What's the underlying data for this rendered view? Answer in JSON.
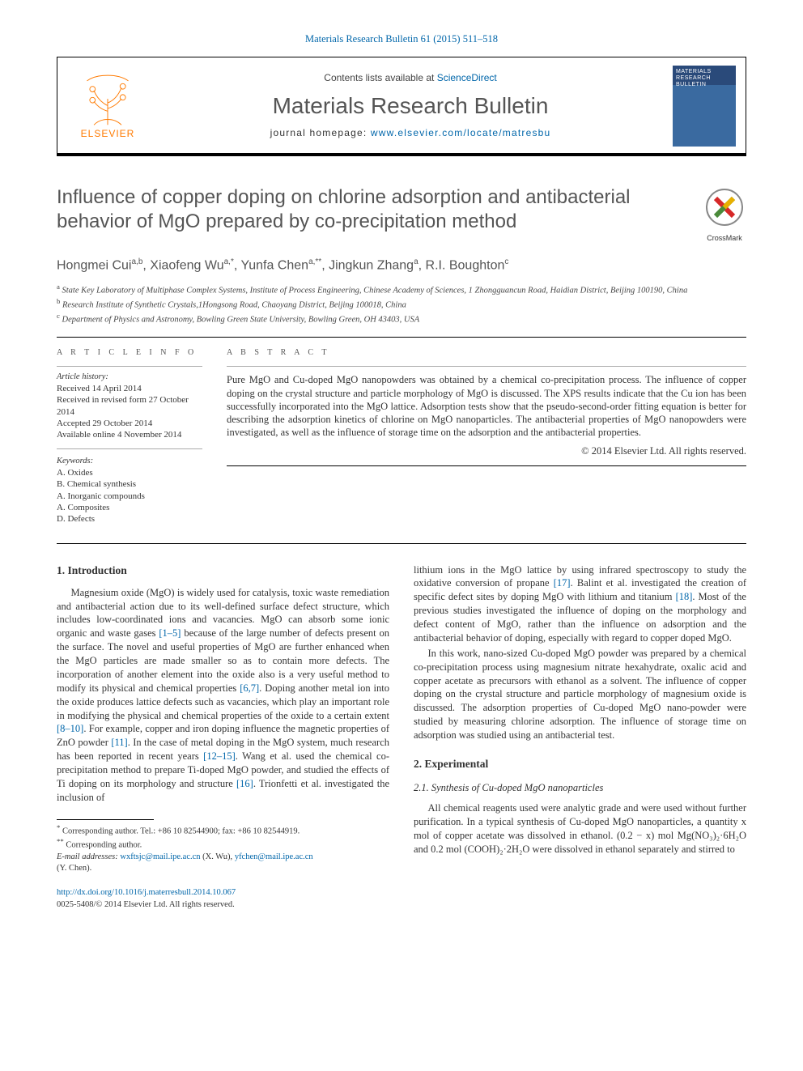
{
  "topLink": {
    "pre": "",
    "linkText": "Materials Research Bulletin 61 (2015) 511–518",
    "href": "#"
  },
  "header": {
    "contentsPre": "Contents lists available at ",
    "contentsLink": "ScienceDirect",
    "journal": "Materials Research Bulletin",
    "homepagePre": "journal homepage: ",
    "homepageLink": "www.elsevier.com/locate/matresbu",
    "elsevier": "ELSEVIER",
    "coverLine1": "MATERIALS",
    "coverLine2": "RESEARCH",
    "coverLine3": "BULLETIN"
  },
  "crossmark": {
    "label": "CrossMark"
  },
  "title": "Influence of copper doping on chlorine adsorption and antibacterial behavior of MgO prepared by co-precipitation method",
  "authors": "Hongmei Cui|a,b|, Xiaofeng Wu|a,*|, Yunfa Chen|a,**|, Jingkun Zhang|a|, R.I. Boughton|c|",
  "affiliations": [
    {
      "sup": "a",
      "text": "State Key Laboratory of Multiphase Complex Systems, Institute of Process Engineering, Chinese Academy of Sciences, 1 Zhongguancun Road, Haidian District, Beijing 100190, China"
    },
    {
      "sup": "b",
      "text": "Research Institute of Synthetic Crystals,1Hongsong Road, Chaoyang District, Beijing 100018, China"
    },
    {
      "sup": "c",
      "text": "Department of Physics and Astronomy, Bowling Green State University, Bowling Green, OH 43403, USA"
    }
  ],
  "articleInfoLabel": "A R T I C L E  I N F O",
  "abstractLabel": "A B S T R A C T",
  "history": {
    "head": "Article history:",
    "items": [
      "Received 14 April 2014",
      "Received in revised form 27 October 2014",
      "Accepted 29 October 2014",
      "Available online 4 November 2014"
    ]
  },
  "keywords": {
    "head": "Keywords:",
    "items": [
      "A. Oxides",
      "B. Chemical synthesis",
      "A. Inorganic compounds",
      "A. Composites",
      "D. Defects"
    ]
  },
  "abstractText": "Pure MgO and Cu-doped MgO nanopowders was obtained by a chemical co-precipitation process. The influence of copper doping on the crystal structure and particle morphology of MgO is discussed. The XPS results indicate that the Cu ion has been successfully incorporated into the MgO lattice. Adsorption tests show that the pseudo-second-order fitting equation is better for describing the adsorption kinetics of chlorine on MgO nanoparticles. The antibacterial properties of MgO nanopowders were investigated, as well as the influence of storage time on the adsorption and the antibacterial properties.",
  "copyright": "© 2014 Elsevier Ltd. All rights reserved.",
  "section1": {
    "head": "1. Introduction"
  },
  "leftParas": [
    "Magnesium oxide (MgO) is widely used for catalysis, toxic waste remediation and antibacterial action due to its well-defined surface defect structure, which includes low-coordinated ions and vacancies. MgO can absorb some ionic organic and waste gases [1–5] because of the large number of defects present on the surface. The novel and useful properties of MgO are further enhanced when the MgO particles are made smaller so as to contain more defects. The incorporation of another element into the oxide also is a very useful method to modify its physical and chemical properties [6,7]. Doping another metal ion into the oxide produces lattice defects such as vacancies, which play an important role in modifying the physical and chemical properties of the oxide to a certain extent [8–10]. For example, copper and iron doping influence the magnetic properties of ZnO powder [11]. In the case of metal doping in the MgO system, much research has been reported in recent years [12–15]. Wang et al. used the chemical co-precipitation method to prepare Ti-doped MgO powder, and studied the effects of Ti doping on its morphology and structure [16]. Trionfetti et al. investigated the inclusion of"
  ],
  "rightParas": [
    "lithium ions in the MgO lattice by using infrared spectroscopy to study the oxidative conversion of propane [17]. Balint et al. investigated the creation of specific defect sites by doping MgO with lithium and titanium [18]. Most of the previous studies investigated the influence of doping on the morphology and defect content of MgO, rather than the influence on adsorption and the antibacterial behavior of doping, especially with regard to copper doped MgO.",
    "In this work, nano-sized Cu-doped MgO powder was prepared by a chemical co-precipitation process using magnesium nitrate hexahydrate, oxalic acid and copper acetate as precursors with ethanol as a solvent. The influence of copper doping on the crystal structure and particle morphology of magnesium oxide is discussed. The adsorption properties of Cu-doped MgO nano-powder were studied by measuring chlorine adsorption. The influence of storage time on adsorption was studied using an antibacterial test."
  ],
  "section2": {
    "head": "2. Experimental",
    "sub": "2.1. Synthesis of Cu-doped MgO nanoparticles"
  },
  "rightParas2": [
    "All chemical reagents used were analytic grade and were used without further purification. In a typical synthesis of Cu-doped MgO nanoparticles, a quantity x mol of copper acetate was dissolved in ethanol. (0.2 − x) mol Mg(NO₃)₂·6H₂O and 0.2 mol (COOH)₂·2H₂O were dissolved in ethanol separately and stirred to"
  ],
  "footnotes": {
    "star1": "Corresponding author. Tel.: +86 10 82544900; fax: +86 10 82544919.",
    "star2": "Corresponding author.",
    "emailLabel": "E-mail addresses:",
    "email1": "wxftsjc@mail.ipe.ac.cn",
    "email1who": "(X. Wu),",
    "email2": "yfchen@mail.ipe.ac.cn",
    "email2who": "(Y. Chen)."
  },
  "doi": {
    "link": "http://dx.doi.org/10.1016/j.materresbull.2014.10.067",
    "issn": "0025-5408/© 2014 Elsevier Ltd. All rights reserved."
  },
  "refLinks": [
    "[1–5]",
    "[6,7]",
    "[8–10]",
    "[11]",
    "[12–15]",
    "[16]",
    "[17]",
    "[18]"
  ],
  "colors": {
    "link": "#0066aa",
    "titleGrey": "#555555",
    "elsevierOrange": "#ff7a00"
  }
}
